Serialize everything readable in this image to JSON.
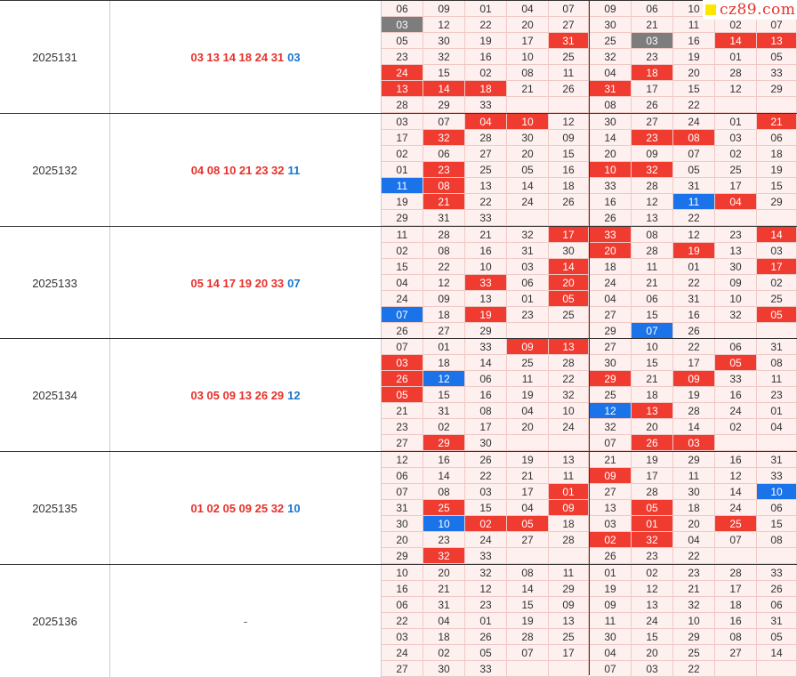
{
  "watermark": "cz89.com",
  "periods": [
    {
      "issue": "2025131",
      "red": "03 13 14 18 24 31",
      "blue": "03",
      "left": [
        [
          "06",
          "09",
          "01",
          "04",
          "07"
        ],
        [
          "03",
          "12",
          "22",
          "20",
          "27"
        ],
        [
          "05",
          "30",
          "19",
          "17",
          "31"
        ],
        [
          "23",
          "32",
          "16",
          "10",
          "25"
        ],
        [
          "24",
          "15",
          "02",
          "08",
          "11"
        ],
        [
          "13",
          "14",
          "18",
          "21",
          "26"
        ],
        [
          "28",
          "29",
          "33",
          "",
          ""
        ]
      ],
      "left_status": [
        [
          "",
          "",
          "",
          "",
          ""
        ],
        [
          "g",
          "",
          "",
          "",
          ""
        ],
        [
          "",
          "",
          "",
          "",
          "r"
        ],
        [
          "",
          "",
          "",
          "",
          ""
        ],
        [
          "r",
          "",
          "",
          "",
          ""
        ],
        [
          "r",
          "r",
          "r",
          "",
          ""
        ],
        [
          "",
          "",
          "",
          "",
          ""
        ]
      ],
      "right": [
        [
          "09",
          "06",
          "10",
          "",
          ""
        ],
        [
          "30",
          "21",
          "11",
          "02",
          "07"
        ],
        [
          "25",
          "03",
          "16",
          "14",
          "13"
        ],
        [
          "32",
          "23",
          "19",
          "01",
          "05"
        ],
        [
          "04",
          "18",
          "20",
          "28",
          "33"
        ],
        [
          "31",
          "17",
          "15",
          "12",
          "29"
        ],
        [
          "08",
          "26",
          "22",
          "",
          ""
        ]
      ],
      "right_status": [
        [
          "",
          "",
          "",
          "",
          ""
        ],
        [
          "",
          "",
          "",
          "",
          ""
        ],
        [
          "",
          "g",
          "",
          "r",
          "r"
        ],
        [
          "",
          "",
          "",
          "",
          ""
        ],
        [
          "",
          "r",
          "",
          "",
          ""
        ],
        [
          "r",
          "",
          "",
          "",
          ""
        ],
        [
          "",
          "",
          "",
          "",
          ""
        ]
      ]
    },
    {
      "issue": "2025132",
      "red": "04 08 10 21 23 32",
      "blue": "11",
      "left": [
        [
          "03",
          "07",
          "04",
          "10",
          "12"
        ],
        [
          "17",
          "32",
          "28",
          "30",
          "09"
        ],
        [
          "02",
          "06",
          "27",
          "20",
          "15"
        ],
        [
          "01",
          "23",
          "25",
          "05",
          "16"
        ],
        [
          "11",
          "08",
          "13",
          "14",
          "18"
        ],
        [
          "19",
          "21",
          "22",
          "24",
          "26"
        ],
        [
          "29",
          "31",
          "33",
          "",
          ""
        ]
      ],
      "left_status": [
        [
          "",
          "",
          "r",
          "r",
          ""
        ],
        [
          "",
          "r",
          "",
          "",
          ""
        ],
        [
          "",
          "",
          "",
          "",
          ""
        ],
        [
          "",
          "r",
          "",
          "",
          ""
        ],
        [
          "b",
          "r",
          "",
          "",
          ""
        ],
        [
          "",
          "r",
          "",
          "",
          ""
        ],
        [
          "",
          "",
          "",
          "",
          ""
        ]
      ],
      "right": [
        [
          "30",
          "27",
          "24",
          "01",
          "21"
        ],
        [
          "14",
          "23",
          "08",
          "03",
          "06"
        ],
        [
          "20",
          "09",
          "07",
          "02",
          "18"
        ],
        [
          "10",
          "32",
          "05",
          "25",
          "19"
        ],
        [
          "33",
          "28",
          "31",
          "17",
          "15"
        ],
        [
          "16",
          "12",
          "11",
          "04",
          "29"
        ],
        [
          "26",
          "13",
          "22",
          "",
          ""
        ]
      ],
      "right_status": [
        [
          "",
          "",
          "",
          "",
          "r"
        ],
        [
          "",
          "r",
          "r",
          "",
          ""
        ],
        [
          "",
          "",
          "",
          "",
          ""
        ],
        [
          "r",
          "r",
          "",
          "",
          ""
        ],
        [
          "",
          "",
          "",
          "",
          ""
        ],
        [
          "",
          "",
          "b",
          "r",
          ""
        ],
        [
          "",
          "",
          "",
          "",
          ""
        ]
      ]
    },
    {
      "issue": "2025133",
      "red": "05 14 17 19 20 33",
      "blue": "07",
      "left": [
        [
          "11",
          "28",
          "21",
          "32",
          "17"
        ],
        [
          "02",
          "08",
          "16",
          "31",
          "30"
        ],
        [
          "15",
          "22",
          "10",
          "03",
          "14"
        ],
        [
          "04",
          "12",
          "33",
          "06",
          "20"
        ],
        [
          "24",
          "09",
          "13",
          "01",
          "05"
        ],
        [
          "07",
          "18",
          "19",
          "23",
          "25"
        ],
        [
          "26",
          "27",
          "29",
          "",
          ""
        ]
      ],
      "left_status": [
        [
          "",
          "",
          "",
          "",
          "r"
        ],
        [
          "",
          "",
          "",
          "",
          ""
        ],
        [
          "",
          "",
          "",
          "",
          "r"
        ],
        [
          "",
          "",
          "r",
          "",
          "r"
        ],
        [
          "",
          "",
          "",
          "",
          "r"
        ],
        [
          "b",
          "",
          "r",
          "",
          ""
        ],
        [
          "",
          "",
          "",
          "",
          ""
        ]
      ],
      "right": [
        [
          "33",
          "08",
          "12",
          "23",
          "14"
        ],
        [
          "20",
          "28",
          "19",
          "13",
          "03"
        ],
        [
          "18",
          "11",
          "01",
          "30",
          "17"
        ],
        [
          "24",
          "21",
          "22",
          "09",
          "02"
        ],
        [
          "04",
          "06",
          "31",
          "10",
          "25"
        ],
        [
          "27",
          "15",
          "16",
          "32",
          "05"
        ],
        [
          "29",
          "07",
          "26",
          "",
          ""
        ]
      ],
      "right_status": [
        [
          "r",
          "",
          "",
          "",
          "r"
        ],
        [
          "r",
          "",
          "r",
          "",
          ""
        ],
        [
          "",
          "",
          "",
          "",
          "r"
        ],
        [
          "",
          "",
          "",
          "",
          ""
        ],
        [
          "",
          "",
          "",
          "",
          ""
        ],
        [
          "",
          "",
          "",
          "",
          "r"
        ],
        [
          "",
          "b",
          "",
          "",
          ""
        ]
      ]
    },
    {
      "issue": "2025134",
      "red": "03 05 09 13 26 29",
      "blue": "12",
      "left": [
        [
          "07",
          "01",
          "33",
          "09",
          "13"
        ],
        [
          "03",
          "18",
          "14",
          "25",
          "28"
        ],
        [
          "26",
          "12",
          "06",
          "11",
          "22"
        ],
        [
          "05",
          "15",
          "16",
          "19",
          "32"
        ],
        [
          "21",
          "31",
          "08",
          "04",
          "10"
        ],
        [
          "23",
          "02",
          "17",
          "20",
          "24"
        ],
        [
          "27",
          "29",
          "30",
          "",
          ""
        ]
      ],
      "left_status": [
        [
          "",
          "",
          "",
          "r",
          "r"
        ],
        [
          "r",
          "",
          "",
          "",
          ""
        ],
        [
          "r",
          "b",
          "",
          "",
          ""
        ],
        [
          "r",
          "",
          "",
          "",
          ""
        ],
        [
          "",
          "",
          "",
          "",
          ""
        ],
        [
          "",
          "",
          "",
          "",
          ""
        ],
        [
          "",
          "r",
          "",
          "",
          ""
        ]
      ],
      "right": [
        [
          "27",
          "10",
          "22",
          "06",
          "31"
        ],
        [
          "30",
          "15",
          "17",
          "05",
          "08"
        ],
        [
          "29",
          "21",
          "09",
          "33",
          "11"
        ],
        [
          "25",
          "18",
          "19",
          "16",
          "23"
        ],
        [
          "12",
          "13",
          "28",
          "24",
          "01"
        ],
        [
          "32",
          "20",
          "14",
          "02",
          "04"
        ],
        [
          "07",
          "26",
          "03",
          "",
          ""
        ]
      ],
      "right_status": [
        [
          "",
          "",
          "",
          "",
          ""
        ],
        [
          "",
          "",
          "",
          "r",
          ""
        ],
        [
          "r",
          "",
          "r",
          "",
          ""
        ],
        [
          "",
          "",
          "",
          "",
          ""
        ],
        [
          "b",
          "r",
          "",
          "",
          ""
        ],
        [
          "",
          "",
          "",
          "",
          ""
        ],
        [
          "",
          "r",
          "r",
          "",
          ""
        ]
      ]
    },
    {
      "issue": "2025135",
      "red": "01 02 05 09 25 32",
      "blue": "10",
      "left": [
        [
          "12",
          "16",
          "26",
          "19",
          "13"
        ],
        [
          "06",
          "14",
          "22",
          "21",
          "11"
        ],
        [
          "07",
          "08",
          "03",
          "17",
          "01"
        ],
        [
          "31",
          "25",
          "15",
          "04",
          "09"
        ],
        [
          "30",
          "10",
          "02",
          "05",
          "18"
        ],
        [
          "20",
          "23",
          "24",
          "27",
          "28"
        ],
        [
          "29",
          "32",
          "33",
          "",
          ""
        ]
      ],
      "left_status": [
        [
          "",
          "",
          "",
          "",
          ""
        ],
        [
          "",
          "",
          "",
          "",
          ""
        ],
        [
          "",
          "",
          "",
          "",
          "r"
        ],
        [
          "",
          "r",
          "",
          "",
          "r"
        ],
        [
          "",
          "b",
          "r",
          "r",
          ""
        ],
        [
          "",
          "",
          "",
          "",
          ""
        ],
        [
          "",
          "r",
          "",
          "",
          ""
        ]
      ],
      "right": [
        [
          "21",
          "19",
          "29",
          "16",
          "31"
        ],
        [
          "09",
          "17",
          "11",
          "12",
          "33"
        ],
        [
          "27",
          "28",
          "30",
          "14",
          "10"
        ],
        [
          "13",
          "05",
          "18",
          "24",
          "06"
        ],
        [
          "03",
          "01",
          "20",
          "25",
          "15"
        ],
        [
          "02",
          "32",
          "04",
          "07",
          "08"
        ],
        [
          "26",
          "23",
          "22",
          "",
          ""
        ]
      ],
      "right_status": [
        [
          "",
          "",
          "",
          "",
          ""
        ],
        [
          "r",
          "",
          "",
          "",
          ""
        ],
        [
          "",
          "",
          "",
          "",
          "b"
        ],
        [
          "",
          "r",
          "",
          "",
          ""
        ],
        [
          "",
          "r",
          "",
          "r",
          ""
        ],
        [
          "r",
          "r",
          "",
          "",
          ""
        ],
        [
          "",
          "",
          "",
          "",
          ""
        ]
      ]
    },
    {
      "issue": "2025136",
      "red": "",
      "blue": "",
      "placeholder": "-",
      "left": [
        [
          "10",
          "20",
          "32",
          "08",
          "11"
        ],
        [
          "16",
          "21",
          "12",
          "14",
          "29"
        ],
        [
          "06",
          "31",
          "23",
          "15",
          "09"
        ],
        [
          "22",
          "04",
          "01",
          "19",
          "13"
        ],
        [
          "03",
          "18",
          "26",
          "28",
          "25"
        ],
        [
          "24",
          "02",
          "05",
          "07",
          "17"
        ],
        [
          "27",
          "30",
          "33",
          "",
          ""
        ]
      ],
      "left_status": [
        [
          "",
          "",
          "",
          "",
          ""
        ],
        [
          "",
          "",
          "",
          "",
          ""
        ],
        [
          "",
          "",
          "",
          "",
          ""
        ],
        [
          "",
          "",
          "",
          "",
          ""
        ],
        [
          "",
          "",
          "",
          "",
          ""
        ],
        [
          "",
          "",
          "",
          "",
          ""
        ],
        [
          "",
          "",
          "",
          "",
          ""
        ]
      ],
      "right": [
        [
          "01",
          "02",
          "23",
          "28",
          "33"
        ],
        [
          "19",
          "12",
          "21",
          "17",
          "26"
        ],
        [
          "09",
          "13",
          "32",
          "18",
          "06"
        ],
        [
          "11",
          "24",
          "10",
          "16",
          "31"
        ],
        [
          "30",
          "15",
          "29",
          "08",
          "05"
        ],
        [
          "04",
          "20",
          "25",
          "27",
          "14"
        ],
        [
          "07",
          "03",
          "22",
          "",
          ""
        ]
      ],
      "right_status": [
        [
          "",
          "",
          "",
          "",
          ""
        ],
        [
          "",
          "",
          "",
          "",
          ""
        ],
        [
          "",
          "",
          "",
          "",
          ""
        ],
        [
          "",
          "",
          "",
          "",
          ""
        ],
        [
          "",
          "",
          "",
          "",
          ""
        ],
        [
          "",
          "",
          "",
          "",
          ""
        ],
        [
          "",
          "",
          "",
          "",
          ""
        ]
      ]
    }
  ]
}
